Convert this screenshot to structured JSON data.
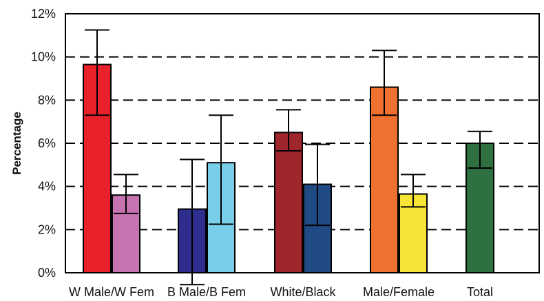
{
  "chart_data": {
    "type": "bar",
    "title": "",
    "xlabel": "",
    "ylabel": "Percentage",
    "ylim": [
      0,
      12
    ],
    "yticks": [
      "0%",
      "2%",
      "4%",
      "6%",
      "8%",
      "10%",
      "12%"
    ],
    "grid": "horizontal dashed",
    "groups": [
      {
        "label": "W Male/W Fem",
        "bars": [
          {
            "value": 9.65,
            "err_low": 7.3,
            "err_high": 11.25,
            "color": "#e8212b"
          },
          {
            "value": 3.6,
            "err_low": 2.75,
            "err_high": 4.55,
            "color": "#c673b2"
          }
        ]
      },
      {
        "label": "B Male/B Fem",
        "bars": [
          {
            "value": 2.95,
            "err_low": -0.55,
            "err_high": 5.25,
            "color": "#2e2e8e"
          },
          {
            "value": 5.1,
            "err_low": 2.25,
            "err_high": 7.3,
            "color": "#79cfe9"
          }
        ]
      },
      {
        "label": "White/Black",
        "bars": [
          {
            "value": 6.5,
            "err_low": 5.65,
            "err_high": 7.55,
            "color": "#a0262e"
          },
          {
            "value": 4.1,
            "err_low": 2.2,
            "err_high": 5.95,
            "color": "#1f4a84"
          }
        ]
      },
      {
        "label": "Male/Female",
        "bars": [
          {
            "value": 8.6,
            "err_low": 7.3,
            "err_high": 10.3,
            "color": "#f07030"
          },
          {
            "value": 3.65,
            "err_low": 3.05,
            "err_high": 4.55,
            "color": "#f7e436"
          }
        ]
      },
      {
        "label": "Total",
        "bars": [
          {
            "value": 6.0,
            "err_low": 4.85,
            "err_high": 6.55,
            "color": "#2f7040"
          }
        ]
      }
    ]
  }
}
